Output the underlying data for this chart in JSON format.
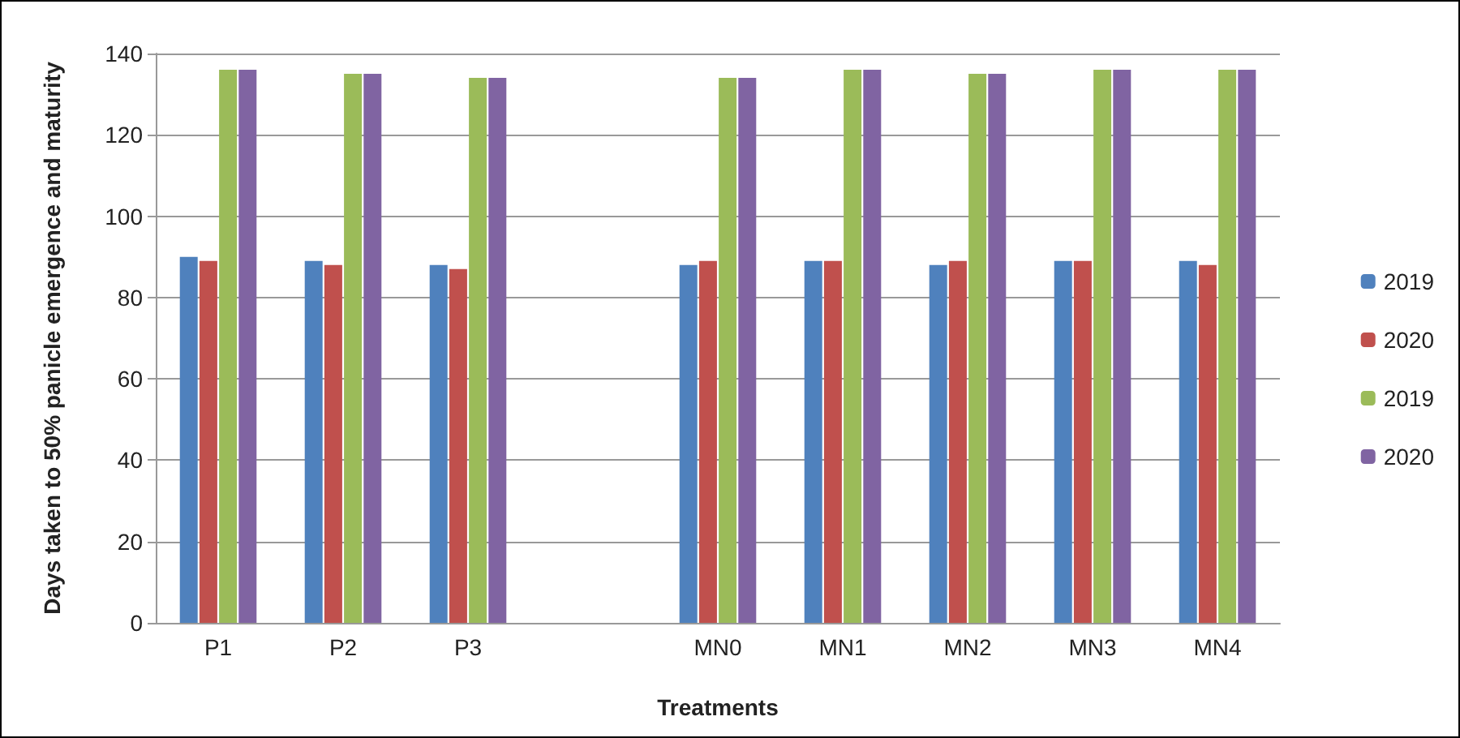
{
  "chart_data": {
    "type": "bar",
    "xlabel": "Treatments",
    "ylabel": "Days taken to 50% panicle emergence and maturity",
    "categories": [
      "P1",
      "P2",
      "P3",
      null,
      "MN0",
      "MN1",
      "MN2",
      "MN3",
      "MN4"
    ],
    "series": [
      {
        "name": "2019",
        "color": "#4f81bd",
        "values": [
          90,
          89,
          88,
          null,
          88,
          89,
          88,
          89,
          89
        ]
      },
      {
        "name": "2020",
        "color": "#c0504d",
        "values": [
          89,
          88,
          87,
          null,
          89,
          89,
          89,
          89,
          88
        ]
      },
      {
        "name": "2019",
        "color": "#9bbb59",
        "values": [
          136,
          135,
          134,
          null,
          134,
          136,
          135,
          136,
          136
        ]
      },
      {
        "name": "2020",
        "color": "#8064a2",
        "values": [
          136,
          135,
          134,
          null,
          134,
          136,
          135,
          136,
          136
        ]
      }
    ],
    "ylim": [
      0,
      140
    ],
    "yticks": [
      0,
      20,
      40,
      60,
      80,
      100,
      120,
      140
    ],
    "grid": "y",
    "legend": "right"
  }
}
